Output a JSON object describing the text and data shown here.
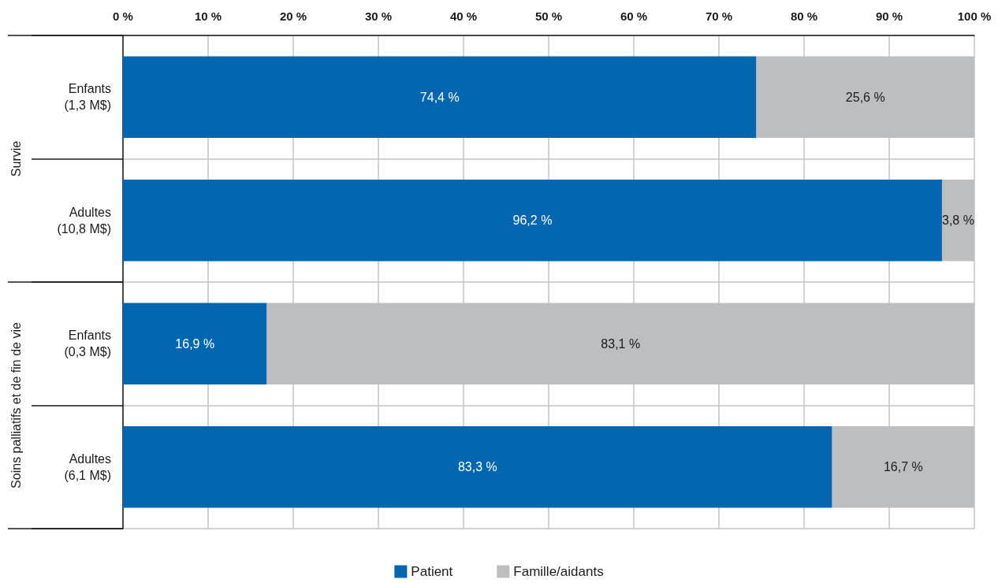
{
  "chart_data": {
    "type": "bar",
    "orientation": "horizontal",
    "stacked": true,
    "categories": [
      "Enfants\n(1,3 M$)",
      "Adultes\n(10,8 M$)",
      "Enfants\n(0,3 M$)",
      "Adultes\n(6,1 M$)"
    ],
    "series": [
      {
        "name": "Patient",
        "color": "#0066b0",
        "values": [
          74.4,
          96.2,
          16.9,
          83.3
        ],
        "value_labels": [
          "74,4 %",
          "96,2 %",
          "16,9 %",
          "83,3 %"
        ]
      },
      {
        "name": "Famille/aidants",
        "color": "#bdbec0",
        "values": [
          25.6,
          3.8,
          83.1,
          16.7
        ],
        "value_labels": [
          "25,6 %",
          "3,8 %",
          "83,1 %",
          "16,7 %"
        ]
      }
    ],
    "xlim": [
      0,
      100
    ],
    "xticks": [
      {
        "value": 0,
        "label": "0 %"
      },
      {
        "value": 10,
        "label": "10 %"
      },
      {
        "value": 20,
        "label": "20 %"
      },
      {
        "value": 30,
        "label": "30 %"
      },
      {
        "value": 40,
        "label": "40 %"
      },
      {
        "value": 50,
        "label": "50 %"
      },
      {
        "value": 60,
        "label": "60 %"
      },
      {
        "value": 70,
        "label": "70 %"
      },
      {
        "value": 80,
        "label": "80 %"
      },
      {
        "value": 90,
        "label": "90 %"
      },
      {
        "value": 100,
        "label": "100 %"
      }
    ],
    "annotations": [
      "Survie",
      "Soins palliatifs et de fin de vie"
    ],
    "grid": true,
    "legend": "bottom"
  }
}
